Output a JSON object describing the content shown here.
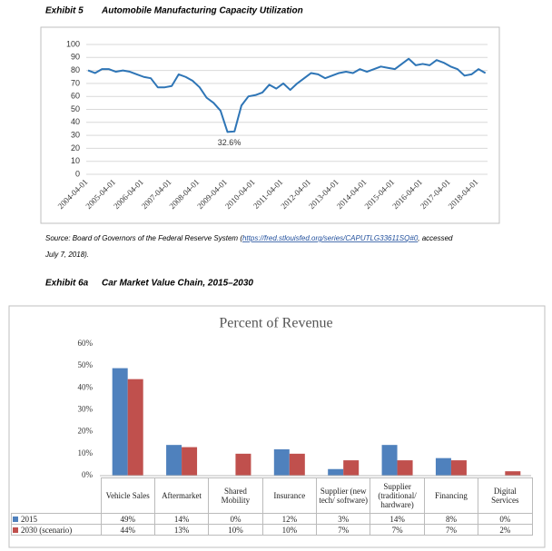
{
  "exhibits": [
    {
      "number": "Exhibit 5",
      "title": "Automobile Manufacturing Capacity Utilization"
    },
    {
      "number": "Exhibit 6a",
      "title": "Car Market Value Chain, 2015–2030"
    }
  ],
  "source": {
    "prefix": "Source: Board of Governors of the Federal Reserve System (",
    "link": "https://fred.stlouisfed.org/series/CAPUTLG33611SQ#0",
    "suffix": ", accessed",
    "line2": "July 7, 2018)."
  },
  "chart_data": [
    {
      "type": "line",
      "categories": [
        "2004-04-01",
        null,
        null,
        null,
        "2005-04-01",
        null,
        null,
        null,
        "2006-04-01",
        null,
        null,
        null,
        "2007-04-01",
        null,
        null,
        null,
        "2008-04-01",
        null,
        null,
        null,
        "2009-04-01",
        null,
        null,
        null,
        "2010-04-01",
        null,
        null,
        null,
        "2011-04-01",
        null,
        null,
        null,
        "2012-04-01",
        null,
        null,
        null,
        "2013-04-01",
        null,
        null,
        null,
        "2014-04-01",
        null,
        null,
        null,
        "2015-04-01",
        null,
        null,
        null,
        "2016-04-01",
        null,
        null,
        null,
        "2017-04-01",
        null,
        null,
        null,
        "2018-04-01",
        null
      ],
      "values": [
        80,
        78,
        81,
        81,
        79,
        80,
        79,
        77,
        75,
        74,
        67,
        67,
        68,
        77,
        75,
        72,
        67,
        59,
        55,
        49,
        32.6,
        33,
        53,
        60,
        61,
        63,
        69,
        66,
        70,
        65,
        70,
        74,
        78,
        77,
        74,
        76,
        78,
        79,
        78,
        81,
        79,
        81,
        83,
        82,
        81,
        85,
        89,
        84,
        85,
        84,
        88,
        86,
        83,
        81,
        76,
        77,
        81,
        78
      ],
      "color": "#2e75b6",
      "ylim": [
        0,
        100
      ],
      "yticks": [
        0,
        10,
        20,
        30,
        40,
        50,
        60,
        70,
        80,
        90,
        100
      ],
      "grid": true,
      "annotations": [
        "32.6%"
      ]
    },
    {
      "type": "bar",
      "title": "Percent of Revenue",
      "categories": [
        "Vehicle Sales",
        "Aftermarket",
        "Shared Mobility",
        "Insurance",
        "Supplier (new tech/ software)",
        "Supplier (traditional/ hardware)",
        "Financing",
        "Digital Services"
      ],
      "series": [
        {
          "name": "2015",
          "color": "#4f81bd",
          "values": [
            49,
            14,
            0,
            12,
            3,
            14,
            8,
            0
          ],
          "value_labels": [
            "49%",
            "14%",
            "0%",
            "12%",
            "3%",
            "14%",
            "8%",
            "0%"
          ]
        },
        {
          "name": "2030 (scenario)",
          "color": "#c0504d",
          "values": [
            44,
            13,
            10,
            10,
            7,
            7,
            7,
            2
          ],
          "value_labels": [
            "44%",
            "13%",
            "10%",
            "10%",
            "7%",
            "7%",
            "7%",
            "2%"
          ]
        }
      ],
      "ylim": [
        0,
        60
      ],
      "yticks": [
        {
          "value": 0,
          "label": "0%"
        },
        {
          "value": 10,
          "label": "10%"
        },
        {
          "value": 20,
          "label": "20%"
        },
        {
          "value": 30,
          "label": "30%"
        },
        {
          "value": 40,
          "label": "40%"
        },
        {
          "value": 50,
          "label": "50%"
        },
        {
          "value": 60,
          "label": "60%"
        }
      ],
      "grid": false
    }
  ]
}
